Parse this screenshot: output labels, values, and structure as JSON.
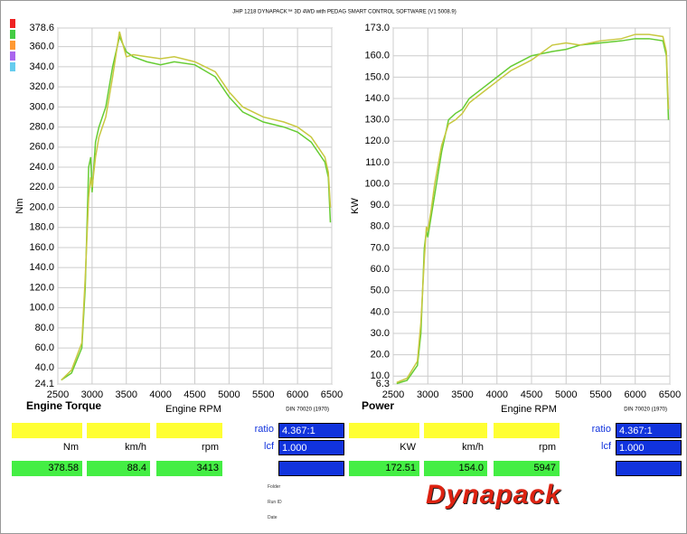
{
  "title": "JHP 1218 DYNAPACK™ 3D 4WD with PEDAG SMART CONTROL SOFTWARE (V1 5008.9)",
  "chart_data": [
    {
      "type": "line",
      "title": "Engine Torque",
      "x_label": "Engine RPM",
      "y_label": "Nm",
      "standard": "DIN 70020 (1970)",
      "xlim": [
        2500,
        6500
      ],
      "xticks": [
        2500,
        3000,
        3500,
        4000,
        4500,
        5000,
        5500,
        6000,
        6500
      ],
      "ylim": [
        24.1,
        378.6
      ],
      "yticks": [
        24.1,
        {
          "value": 40,
          "label": "40.0"
        },
        {
          "value": 60,
          "label": "60.0"
        },
        {
          "value": 80,
          "label": "80.0"
        },
        {
          "value": 100,
          "label": "100.0"
        },
        {
          "value": 120,
          "label": "120.0"
        },
        {
          "value": 140,
          "label": "140.0"
        },
        {
          "value": 160,
          "label": "160.0"
        },
        {
          "value": 180,
          "label": "180.0"
        },
        {
          "value": 200,
          "label": "200.0"
        },
        {
          "value": 220,
          "label": "220.0"
        },
        {
          "value": 240,
          "label": "240.0"
        },
        {
          "value": 260,
          "label": "260.0"
        },
        {
          "value": 280,
          "label": "280.0"
        },
        {
          "value": 300,
          "label": "300.0"
        },
        {
          "value": 320,
          "label": "320.0"
        },
        {
          "value": 340,
          "label": "340.0"
        },
        {
          "value": 360,
          "label": "360.0"
        },
        378.6
      ],
      "grid": true,
      "x": [
        2550,
        2700,
        2850,
        2900,
        2950,
        2980,
        3000,
        3050,
        3100,
        3200,
        3300,
        3400,
        3500,
        3600,
        3800,
        4000,
        4200,
        4500,
        4800,
        5000,
        5200,
        5500,
        5800,
        6000,
        6200,
        6400,
        6450,
        6480
      ],
      "series": [
        {
          "color": "#66cc33",
          "values": [
            28,
            35,
            60,
            120,
            240,
            250,
            215,
            265,
            280,
            300,
            340,
            370,
            355,
            350,
            345,
            342,
            345,
            342,
            330,
            310,
            295,
            285,
            280,
            275,
            265,
            245,
            230,
            185
          ]
        },
        {
          "color": "#c8c840",
          "values": [
            28,
            38,
            65,
            130,
            210,
            230,
            220,
            250,
            270,
            290,
            330,
            375,
            350,
            352,
            350,
            348,
            350,
            345,
            335,
            315,
            300,
            290,
            285,
            280,
            270,
            250,
            235,
            200
          ]
        }
      ]
    },
    {
      "type": "line",
      "title": "Power",
      "x_label": "Engine RPM",
      "y_label": "KW",
      "standard": "DIN 70020 (1970)",
      "xlim": [
        2500,
        6500
      ],
      "xticks": [
        2500,
        3000,
        3500,
        4000,
        4500,
        5000,
        5500,
        6000,
        6500
      ],
      "ylim": [
        6.3,
        173.0
      ],
      "yticks": [
        6.3,
        {
          "value": 10,
          "label": "10.0"
        },
        {
          "value": 20,
          "label": "20.0"
        },
        {
          "value": 30,
          "label": "30.0"
        },
        {
          "value": 40,
          "label": "40.0"
        },
        {
          "value": 50,
          "label": "50.0"
        },
        {
          "value": 60,
          "label": "60.0"
        },
        {
          "value": 70,
          "label": "70.0"
        },
        {
          "value": 80,
          "label": "80.0"
        },
        {
          "value": 90,
          "label": "90.0"
        },
        {
          "value": 100,
          "label": "100.0"
        },
        {
          "value": 110,
          "label": "110.0"
        },
        {
          "value": 120,
          "label": "120.0"
        },
        {
          "value": 130,
          "label": "130.0"
        },
        {
          "value": 140,
          "label": "140.0"
        },
        {
          "value": 150,
          "label": "150.0"
        },
        {
          "value": 160,
          "label": "160.0"
        },
        {
          "value": 173,
          "label": "173.0"
        }
      ],
      "grid": true,
      "x": [
        2550,
        2700,
        2850,
        2900,
        2950,
        2980,
        3000,
        3050,
        3100,
        3200,
        3300,
        3400,
        3500,
        3600,
        3800,
        4000,
        4200,
        4500,
        4800,
        5000,
        5200,
        5500,
        5800,
        6000,
        6200,
        6400,
        6450,
        6480
      ],
      "series": [
        {
          "color": "#66cc33",
          "values": [
            6.5,
            8,
            15,
            30,
            70,
            78,
            75,
            85,
            95,
            115,
            130,
            133,
            135,
            140,
            145,
            150,
            155,
            160,
            162,
            163,
            165,
            166,
            167,
            168,
            168,
            167,
            160,
            130
          ]
        },
        {
          "color": "#c8c840",
          "values": [
            7,
            9,
            17,
            35,
            65,
            80,
            78,
            88,
            100,
            118,
            128,
            130,
            133,
            138,
            143,
            148,
            153,
            158,
            165,
            166,
            165,
            167,
            168,
            170,
            170,
            169,
            162,
            135
          ]
        }
      ]
    }
  ],
  "panels": [
    {
      "units": [
        "Nm",
        "km/h",
        "rpm"
      ],
      "readings": [
        "378.58",
        "88.4",
        "3413"
      ],
      "ratio_label": "ratio",
      "ratio": "4.367:1",
      "lcf_label": "lcf",
      "lcf": "1.000"
    },
    {
      "units": [
        "KW",
        "km/h",
        "rpm"
      ],
      "readings": [
        "172.51",
        "154.0",
        "5947"
      ],
      "ratio_label": "ratio",
      "ratio": "4.367:1",
      "lcf_label": "lcf",
      "lcf": "1.000"
    }
  ],
  "footer": {
    "fields": [
      "Folder",
      "Run ID",
      "Date"
    ],
    "logo": "Dynapack"
  }
}
